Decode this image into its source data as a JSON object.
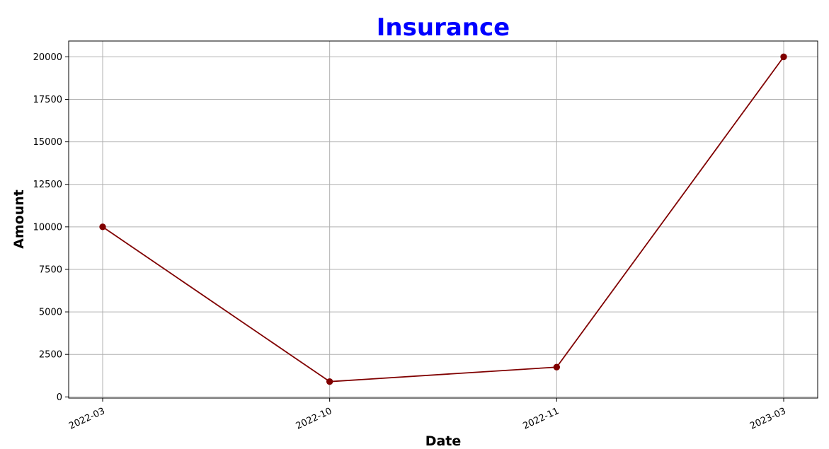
{
  "colors": {
    "title": "#0000ff",
    "line": "#800000",
    "marker": "#800000",
    "grid": "#b0b0b0",
    "axes": "#000000",
    "background": "#ffffff"
  },
  "chart_data": {
    "type": "line",
    "title": "Insurance",
    "xlabel": "Date",
    "ylabel": "Amount",
    "categories": [
      "2022-03",
      "2022-10",
      "2022-11",
      "2023-03"
    ],
    "series": [
      {
        "name": "Insurance",
        "values": [
          10000,
          900,
          1750,
          20000
        ]
      }
    ],
    "yticks": [
      0,
      2500,
      5000,
      7500,
      10000,
      12500,
      15000,
      17500,
      20000
    ],
    "ylim": [
      -70,
      20930
    ],
    "grid": true,
    "marker": "circle",
    "xtick_rotation": -25
  }
}
